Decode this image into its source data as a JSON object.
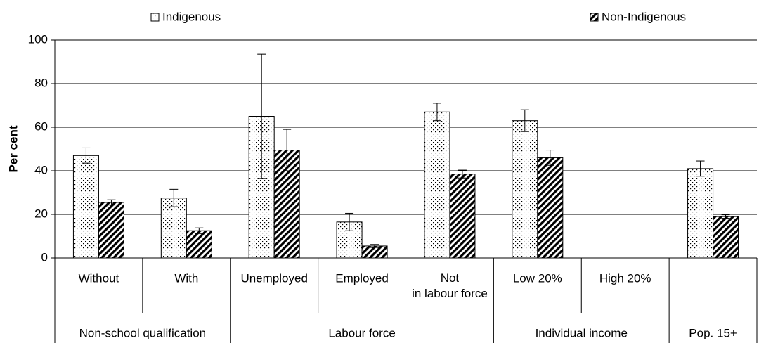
{
  "chart_data": {
    "type": "bar",
    "y_label": "Per cent",
    "ylim": [
      0,
      100
    ],
    "yticks": [
      0,
      20,
      40,
      60,
      80,
      100
    ],
    "grid": true,
    "legend": "top",
    "groups": [
      {
        "name": "Non-school qualification",
        "categories": [
          "Without",
          "With"
        ]
      },
      {
        "name": "Labour force",
        "categories": [
          "Unemployed",
          "Employed",
          "Not in labour force"
        ]
      },
      {
        "name": "Individual income",
        "categories": [
          "Low  20%",
          "High 20%"
        ]
      },
      {
        "name": "Pop. 15+",
        "categories": [
          null
        ]
      }
    ],
    "series": [
      {
        "name": "Indigenous",
        "color": "#000000",
        "pattern": "dots",
        "values": [
          47,
          27.5,
          65,
          16.5,
          67,
          63,
          0,
          41
        ],
        "errors": [
          3.5,
          4,
          28.5,
          4,
          4,
          5,
          0,
          3.5
        ]
      },
      {
        "name": "Non-Indigenous",
        "color": "#000000",
        "pattern": "hatch",
        "values": [
          25.5,
          12.5,
          49.5,
          5.5,
          38.5,
          46,
          0,
          19
        ],
        "errors": [
          1.2,
          1.3,
          9.5,
          0.7,
          1.8,
          3.5,
          0,
          0.8
        ]
      }
    ]
  }
}
